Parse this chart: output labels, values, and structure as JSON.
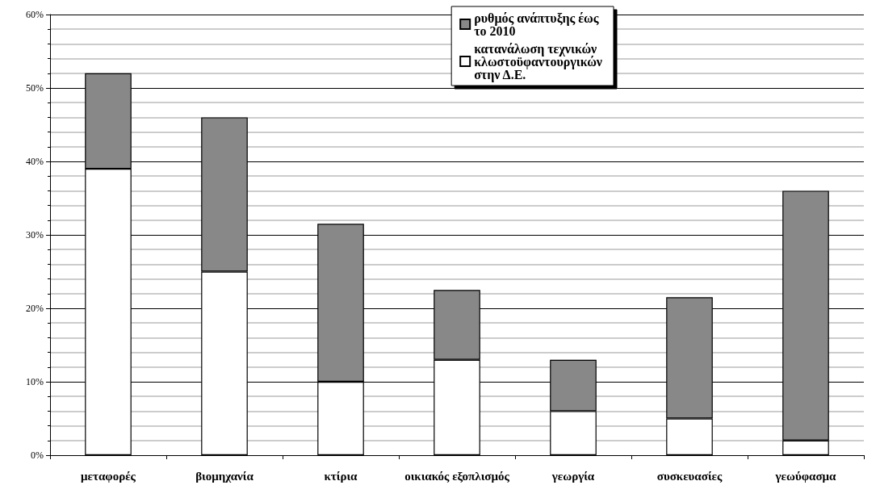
{
  "chart_data": {
    "type": "bar",
    "stacked": true,
    "categories": [
      "μεταφορές",
      "βιομηχανία",
      "κτίρια",
      "οικιακός εξοπλισμός",
      "γεωργία",
      "συσκευασίες",
      "γεωύφασμα"
    ],
    "series": [
      {
        "name": "κατανάλωση τεχνικών κλωστοϋφαντουργικών στην Δ.Ε.",
        "color": "#ffffff",
        "values": [
          39,
          25,
          10,
          13,
          6,
          5,
          2
        ]
      },
      {
        "name": "ρυθμός ανάπτυξης έως το 2010",
        "color": "#888888",
        "values": [
          13,
          21,
          21.5,
          9.5,
          7,
          16.5,
          34
        ]
      }
    ],
    "ylim": [
      0,
      60
    ],
    "yticks": [
      {
        "value": 0,
        "label": "0%"
      },
      {
        "value": 10,
        "label": "10%"
      },
      {
        "value": 20,
        "label": "20%"
      },
      {
        "value": 30,
        "label": "30%"
      },
      {
        "value": 40,
        "label": "40%"
      },
      {
        "value": 50,
        "label": "50%"
      },
      {
        "value": 60,
        "label": "60%"
      }
    ],
    "grid": "y",
    "legend": "top right"
  }
}
